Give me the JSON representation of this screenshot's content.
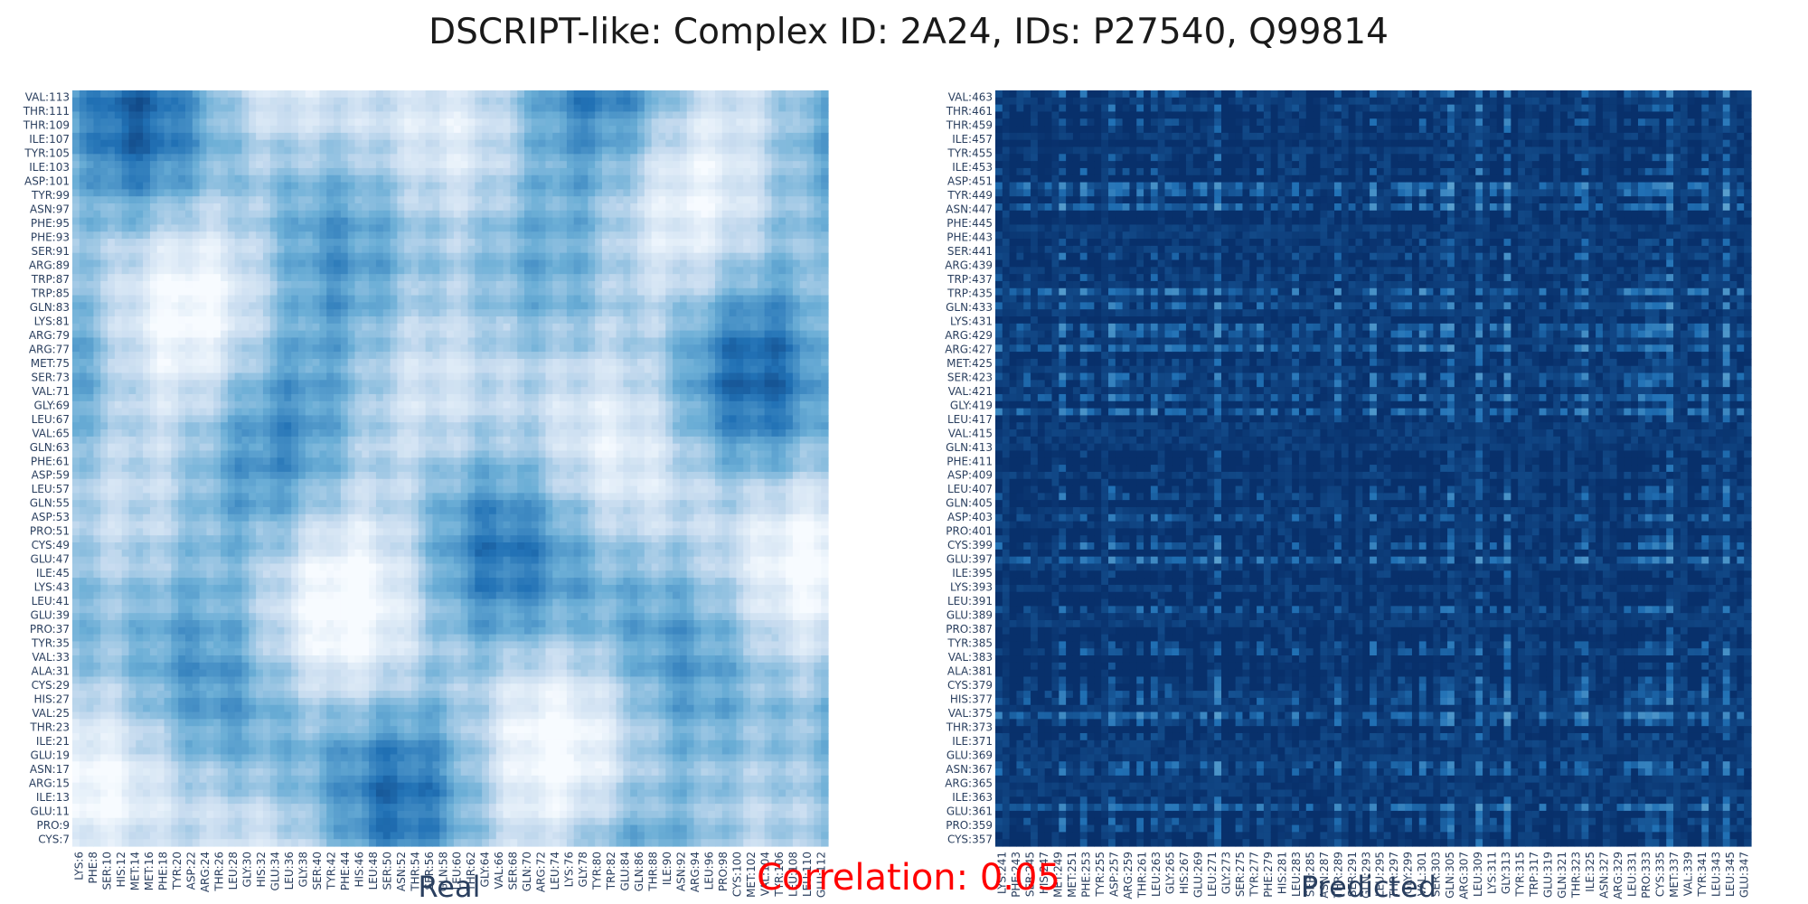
{
  "chart_data": {
    "type": "heatmap",
    "title": "DSCRIPT-like: Complex ID: 2A24, IDs: P27540, Q99814",
    "annotation": "Correlation: 0.05",
    "colorscale": [
      "#f7fbff",
      "#c6dbef",
      "#6baed6",
      "#2171b5",
      "#08306b"
    ],
    "panels": [
      {
        "name": "Real",
        "x_ticks": [
          "LYS:6",
          "PHE:8",
          "SER:10",
          "HIS:12",
          "MET:14",
          "MET:16",
          "PHE:18",
          "TYR:20",
          "ASP:22",
          "ARG:24",
          "THR:26",
          "LEU:28",
          "GLY:30",
          "HIS:32",
          "GLU:34",
          "LEU:36",
          "GLY:38",
          "SER:40",
          "TYR:42",
          "PHE:44",
          "HIS:46",
          "LEU:48",
          "SER:50",
          "ASN:52",
          "THR:54",
          "SER:56",
          "GLN:58",
          "LEU:60",
          "THR:62",
          "GLY:64",
          "VAL:66",
          "SER:68",
          "GLN:70",
          "ARG:72",
          "LEU:74",
          "LYS:76",
          "GLY:78",
          "TYR:80",
          "TRP:82",
          "GLU:84",
          "GLN:86",
          "THR:88",
          "ILE:90",
          "ASN:92",
          "ARG:94",
          "LEU:96",
          "PRO:98",
          "CYS:100",
          "MET:102",
          "VAL:104",
          "TYR:106",
          "LEU:108",
          "LEU:110",
          "GLU:112"
        ],
        "y_ticks": [
          "CYS:7",
          "PRO:9",
          "GLU:11",
          "ILE:13",
          "ARG:15",
          "ASN:17",
          "GLU:19",
          "ILE:21",
          "THR:23",
          "VAL:25",
          "HIS:27",
          "CYS:29",
          "ALA:31",
          "VAL:33",
          "TYR:35",
          "PRO:37",
          "GLU:39",
          "LEU:41",
          "LYS:43",
          "ILE:45",
          "GLU:47",
          "CYS:49",
          "PRO:51",
          "ASP:53",
          "GLN:55",
          "LEU:57",
          "ASP:59",
          "PHE:61",
          "GLN:63",
          "VAL:65",
          "LEU:67",
          "GLY:69",
          "VAL:71",
          "SER:73",
          "MET:75",
          "ARG:77",
          "ARG:79",
          "LYS:81",
          "GLN:83",
          "TRP:85",
          "TRP:87",
          "ARG:89",
          "SER:91",
          "PHE:93",
          "PHE:95",
          "ASN:97",
          "TYR:99",
          "ASP:101",
          "ILE:103",
          "TYR:105",
          "ILE:107",
          "THR:109",
          "THR:111",
          "VAL:113"
        ]
      },
      {
        "name": "Predicted",
        "x_ticks": [
          "LYS:241",
          "PHE:243",
          "SER:245",
          "HIS:247",
          "MET:249",
          "MET:251",
          "PHE:253",
          "TYR:255",
          "ASP:257",
          "ARG:259",
          "THR:261",
          "LEU:263",
          "GLY:265",
          "HIS:267",
          "GLU:269",
          "LEU:271",
          "GLY:273",
          "SER:275",
          "TYR:277",
          "PHE:279",
          "HIS:281",
          "LEU:283",
          "SER:285",
          "ASN:287",
          "THR:289",
          "SER:291",
          "GLN:293",
          "LEU:295",
          "THR:297",
          "GLY:299",
          "VAL:301",
          "SER:303",
          "GLN:305",
          "ARG:307",
          "LEU:309",
          "LYS:311",
          "GLY:313",
          "TYR:315",
          "TRP:317",
          "GLU:319",
          "GLN:321",
          "THR:323",
          "ILE:325",
          "ASN:327",
          "ARG:329",
          "LEU:331",
          "PRO:333",
          "CYS:335",
          "MET:337",
          "VAL:339",
          "TYR:341",
          "LEU:343",
          "LEU:345",
          "GLU:347"
        ],
        "y_ticks": [
          "CYS:357",
          "PRO:359",
          "GLU:361",
          "ILE:363",
          "ARG:365",
          "ASN:367",
          "GLU:369",
          "ILE:371",
          "THR:373",
          "VAL:375",
          "HIS:377",
          "CYS:379",
          "ALA:381",
          "VAL:383",
          "TYR:385",
          "PRO:387",
          "GLU:389",
          "LEU:391",
          "LYS:393",
          "ILE:395",
          "GLU:397",
          "CYS:399",
          "PRO:401",
          "ASP:403",
          "GLN:405",
          "LEU:407",
          "ASP:409",
          "PHE:411",
          "GLN:413",
          "VAL:415",
          "LEU:417",
          "GLY:419",
          "VAL:421",
          "SER:423",
          "MET:425",
          "ARG:427",
          "ARG:429",
          "LYS:431",
          "GLN:433",
          "TRP:435",
          "TRP:437",
          "ARG:439",
          "SER:441",
          "PHE:443",
          "PHE:445",
          "ASN:447",
          "TYR:449",
          "ASP:451",
          "ILE:453",
          "TYR:455",
          "ILE:457",
          "THR:459",
          "THR:461",
          "VAL:463"
        ]
      }
    ]
  }
}
